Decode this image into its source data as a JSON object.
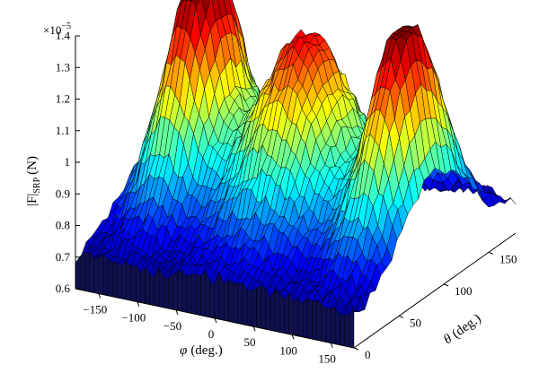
{
  "chart_data": {
    "type": "surface3d",
    "title": "",
    "zlabel_main": "|F|",
    "zlabel_sub": "SRP",
    "zlabel_unit": "(N)",
    "z_exponent_base": "×10",
    "z_exponent_power": "−5",
    "xlabel_symbol": "φ",
    "xlabel_unit": "(deg.)",
    "ylabel_symbol": "θ",
    "ylabel_unit": "(deg.)",
    "x_ticks": [
      "−150",
      "−100",
      "−50",
      "0",
      "50",
      "100",
      "150"
    ],
    "x_tick_values": [
      -150,
      -100,
      -50,
      0,
      50,
      100,
      150
    ],
    "y_ticks": [
      "0",
      "50",
      "100",
      "150"
    ],
    "y_tick_values": [
      0,
      50,
      100,
      150
    ],
    "z_ticks": [
      "0.6",
      "0.7",
      "0.8",
      "0.9",
      "1",
      "1.1",
      "1.2",
      "1.3",
      "1.4"
    ],
    "z_tick_values": [
      0.6,
      0.7,
      0.8,
      0.9,
      1.0,
      1.1,
      1.2,
      1.3,
      1.4
    ],
    "xlim": [
      -180,
      180
    ],
    "ylim": [
      0,
      180
    ],
    "zlim": [
      0.6,
      1.4
    ],
    "grid": false,
    "colormap": "jet",
    "surface_model": {
      "description_units": "x=phi deg, y=theta deg, z=|F| in 1e-5 N",
      "base": 0.7,
      "peaks": [
        {
          "phi": -120,
          "theta": 90,
          "height": 1.4
        },
        {
          "phi": 10,
          "theta": 90,
          "height": 1.22
        },
        {
          "phi": 140,
          "theta": 90,
          "height": 1.32
        }
      ]
    }
  }
}
